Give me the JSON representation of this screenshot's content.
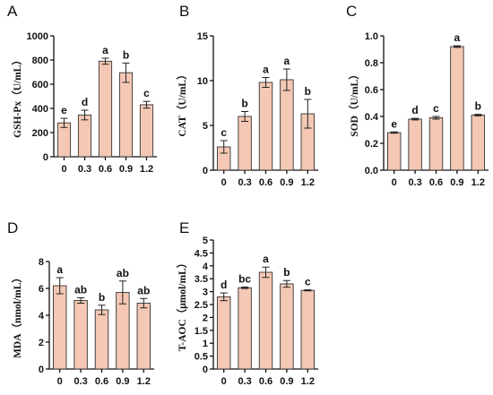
{
  "chart_data": [
    {
      "id": "A",
      "type": "bar",
      "panel_label": "A",
      "ylabel": "GSH-Px（U/mL）",
      "categories": [
        "0",
        "0.3",
        "0.6",
        "0.9",
        "1.2"
      ],
      "values": [
        280,
        345,
        790,
        695,
        430
      ],
      "errors": [
        38,
        40,
        25,
        80,
        28
      ],
      "letters": [
        "e",
        "d",
        "a",
        "b",
        "c"
      ],
      "ylim": [
        0,
        1000
      ],
      "yticks": [
        "0",
        "200",
        "400",
        "600",
        "800",
        "1000"
      ],
      "ytick_values": [
        0,
        200,
        400,
        600,
        800,
        1000
      ],
      "bar_color": "#f4c8b4"
    },
    {
      "id": "B",
      "type": "bar",
      "panel_label": "B",
      "ylabel": "CAT（U/mL）",
      "categories": [
        "0",
        "0.3",
        "0.6",
        "0.9",
        "1.2"
      ],
      "values": [
        2.6,
        6.0,
        9.8,
        10.1,
        6.3
      ],
      "errors": [
        0.7,
        0.55,
        0.55,
        1.2,
        1.6
      ],
      "letters": [
        "c",
        "b",
        "a",
        "a",
        "b"
      ],
      "ylim": [
        0,
        15
      ],
      "yticks": [
        "0",
        "5",
        "10",
        "15"
      ],
      "ytick_values": [
        0,
        5,
        10,
        15
      ],
      "bar_color": "#f4c8b4"
    },
    {
      "id": "C",
      "type": "bar",
      "panel_label": "C",
      "ylabel": "SOD（U/mL）",
      "categories": [
        "0",
        "0.3",
        "0.6",
        "0.9",
        "1.2"
      ],
      "values": [
        0.28,
        0.38,
        0.39,
        0.92,
        0.41
      ],
      "errors": [
        0.005,
        0.006,
        0.01,
        0.006,
        0.006
      ],
      "letters": [
        "e",
        "d",
        "c",
        "a",
        "b"
      ],
      "ylim": [
        0,
        1.0
      ],
      "yticks": [
        "0.0",
        "0.2",
        "0.4",
        "0.6",
        "0.8",
        "1.0"
      ],
      "ytick_values": [
        0,
        0.2,
        0.4,
        0.6,
        0.8,
        1.0
      ],
      "bar_color": "#f4c8b4"
    },
    {
      "id": "D",
      "type": "bar",
      "panel_label": "D",
      "ylabel": "MDA（nmol/mL）",
      "categories": [
        "0",
        "0.3",
        "0.6",
        "0.9",
        "1.2"
      ],
      "values": [
        6.2,
        5.1,
        4.4,
        5.7,
        4.9
      ],
      "errors": [
        0.6,
        0.2,
        0.35,
        0.85,
        0.35
      ],
      "letters": [
        "a",
        "ab",
        "b",
        "ab",
        "ab"
      ],
      "ylim": [
        0,
        8
      ],
      "yticks": [
        "0",
        "2",
        "4",
        "6",
        "8"
      ],
      "ytick_values": [
        0,
        2,
        4,
        6,
        8
      ],
      "bar_color": "#f4c8b4"
    },
    {
      "id": "E",
      "type": "bar",
      "panel_label": "E",
      "ylabel": "T-AOC（μmol/mL）",
      "categories": [
        "0",
        "0.3",
        "0.6",
        "0.9",
        "1.2"
      ],
      "values": [
        2.8,
        3.15,
        3.75,
        3.3,
        3.05
      ],
      "errors": [
        0.15,
        0.03,
        0.2,
        0.13,
        0.02
      ],
      "letters": [
        "d",
        "bc",
        "a",
        "b",
        "c"
      ],
      "ylim": [
        0,
        5
      ],
      "yticks": [
        "0",
        "0.5",
        "1",
        "1.5",
        "2",
        "2.5",
        "3",
        "3.5",
        "4",
        "4.5",
        "5"
      ],
      "ytick_values": [
        0,
        0.5,
        1,
        1.5,
        2,
        2.5,
        3,
        3.5,
        4,
        4.5,
        5
      ],
      "bar_color": "#f4c8b4"
    }
  ]
}
